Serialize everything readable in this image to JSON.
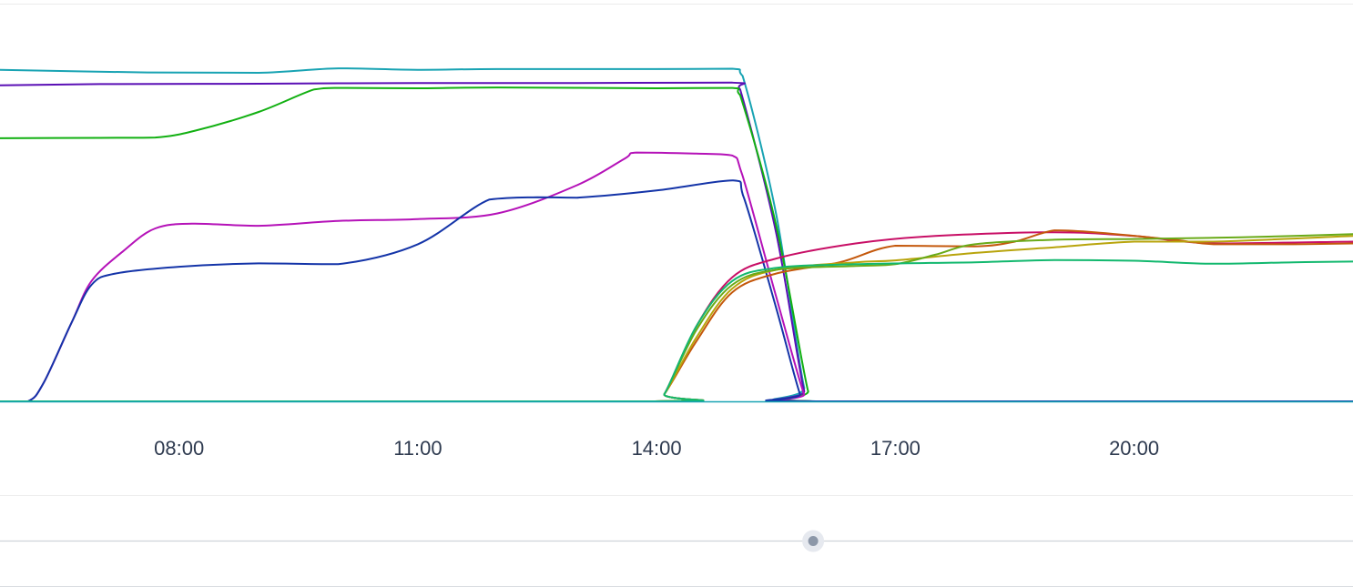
{
  "chart_data": {
    "type": "line",
    "title": "",
    "xlabel": "",
    "ylabel": "",
    "x_ticks": [
      "08:00",
      "11:00",
      "14:00",
      "17:00",
      "20:00"
    ],
    "x_range_hours": [
      5.75,
      22.75
    ],
    "y_range": [
      0,
      1
    ],
    "grid": false,
    "legend": "none",
    "series": [
      {
        "color": "#18a3b3",
        "points": [
          [
            5.75,
            0.882
          ],
          [
            7.6,
            0.875
          ],
          [
            9.0,
            0.874
          ],
          [
            10.0,
            0.886
          ],
          [
            11.0,
            0.882
          ],
          [
            12.0,
            0.884
          ],
          [
            14.0,
            0.884
          ],
          [
            14.95,
            0.885
          ],
          [
            15.08,
            0.866
          ],
          [
            15.5,
            0.5
          ],
          [
            15.85,
            0.04
          ],
          [
            16.0,
            0.0
          ],
          [
            22.75,
            0.0
          ]
        ]
      },
      {
        "color": "#5a0fb5",
        "points": [
          [
            5.75,
            0.841
          ],
          [
            7.0,
            0.844
          ],
          [
            9.0,
            0.845
          ],
          [
            11.0,
            0.847
          ],
          [
            13.0,
            0.847
          ],
          [
            14.95,
            0.848
          ],
          [
            15.05,
            0.83
          ],
          [
            15.5,
            0.45
          ],
          [
            15.85,
            0.03
          ],
          [
            15.98,
            0.0
          ],
          [
            22.75,
            0.0
          ]
        ]
      },
      {
        "color": "#12b012",
        "points": [
          [
            5.75,
            0.7
          ],
          [
            7.0,
            0.701
          ],
          [
            7.7,
            0.702
          ],
          [
            8.2,
            0.72
          ],
          [
            9.0,
            0.77
          ],
          [
            9.7,
            0.83
          ],
          [
            10.0,
            0.834
          ],
          [
            11.0,
            0.833
          ],
          [
            12.0,
            0.835
          ],
          [
            14.0,
            0.833
          ],
          [
            14.95,
            0.834
          ],
          [
            15.05,
            0.815
          ],
          [
            15.5,
            0.47
          ],
          [
            15.9,
            0.03
          ],
          [
            16.02,
            0.0
          ],
          [
            22.75,
            0.0
          ]
        ]
      },
      {
        "color": "#b512b8",
        "points": [
          [
            5.75,
            0.0
          ],
          [
            6.1,
            0.0
          ],
          [
            6.3,
            0.05
          ],
          [
            6.65,
            0.21
          ],
          [
            6.9,
            0.32
          ],
          [
            7.3,
            0.4
          ],
          [
            7.7,
            0.46
          ],
          [
            8.2,
            0.473
          ],
          [
            9.0,
            0.467
          ],
          [
            10.0,
            0.48
          ],
          [
            11.0,
            0.485
          ],
          [
            12.0,
            0.5
          ],
          [
            13.0,
            0.575
          ],
          [
            13.6,
            0.646
          ],
          [
            13.75,
            0.662
          ],
          [
            14.5,
            0.659
          ],
          [
            14.95,
            0.654
          ],
          [
            15.08,
            0.6
          ],
          [
            15.5,
            0.28
          ],
          [
            15.85,
            0.02
          ],
          [
            15.95,
            0.0
          ],
          [
            22.75,
            0.0
          ]
        ]
      },
      {
        "color": "#1434a8",
        "points": [
          [
            5.75,
            0.0
          ],
          [
            6.1,
            0.0
          ],
          [
            6.3,
            0.05
          ],
          [
            6.65,
            0.21
          ],
          [
            6.9,
            0.31
          ],
          [
            7.2,
            0.34
          ],
          [
            8.0,
            0.358
          ],
          [
            9.0,
            0.367
          ],
          [
            10.0,
            0.365
          ],
          [
            11.0,
            0.418
          ],
          [
            11.9,
            0.537
          ],
          [
            12.5,
            0.543
          ],
          [
            13.0,
            0.542
          ],
          [
            14.0,
            0.561
          ],
          [
            14.95,
            0.588
          ],
          [
            15.1,
            0.54
          ],
          [
            15.5,
            0.25
          ],
          [
            15.8,
            0.02
          ],
          [
            15.9,
            0.0
          ],
          [
            22.75,
            0.0
          ]
        ]
      },
      {
        "color": "#c80f66",
        "points": [
          [
            5.75,
            0.0
          ],
          [
            13.95,
            0.0
          ],
          [
            14.1,
            0.02
          ],
          [
            14.5,
            0.2
          ],
          [
            14.95,
            0.33
          ],
          [
            15.5,
            0.38
          ],
          [
            16.5,
            0.42
          ],
          [
            17.5,
            0.44
          ],
          [
            19.0,
            0.45
          ],
          [
            20.0,
            0.44
          ],
          [
            21.0,
            0.42
          ],
          [
            22.75,
            0.425
          ]
        ]
      },
      {
        "color": "#c4580c",
        "points": [
          [
            5.75,
            0.0
          ],
          [
            13.95,
            0.0
          ],
          [
            14.1,
            0.02
          ],
          [
            14.5,
            0.16
          ],
          [
            14.95,
            0.29
          ],
          [
            15.5,
            0.34
          ],
          [
            16.3,
            0.37
          ],
          [
            17.0,
            0.414
          ],
          [
            18.0,
            0.412
          ],
          [
            18.5,
            0.425
          ],
          [
            19.0,
            0.455
          ],
          [
            19.5,
            0.45
          ],
          [
            20.5,
            0.43
          ],
          [
            21.0,
            0.418
          ],
          [
            22.0,
            0.418
          ],
          [
            22.75,
            0.42
          ]
        ]
      },
      {
        "color": "#b8a40c",
        "points": [
          [
            5.75,
            0.0
          ],
          [
            13.95,
            0.0
          ],
          [
            14.1,
            0.02
          ],
          [
            14.5,
            0.17
          ],
          [
            14.95,
            0.3
          ],
          [
            15.5,
            0.35
          ],
          [
            16.5,
            0.37
          ],
          [
            17.0,
            0.375
          ],
          [
            18.0,
            0.395
          ],
          [
            19.0,
            0.41
          ],
          [
            20.0,
            0.425
          ],
          [
            21.0,
            0.425
          ],
          [
            22.75,
            0.44
          ]
        ]
      },
      {
        "color": "#69aa18",
        "points": [
          [
            5.75,
            0.0
          ],
          [
            13.95,
            0.0
          ],
          [
            14.1,
            0.02
          ],
          [
            14.5,
            0.19
          ],
          [
            14.95,
            0.31
          ],
          [
            15.5,
            0.35
          ],
          [
            16.5,
            0.36
          ],
          [
            17.0,
            0.365
          ],
          [
            17.5,
            0.39
          ],
          [
            18.0,
            0.418
          ],
          [
            19.0,
            0.43
          ],
          [
            20.0,
            0.432
          ],
          [
            21.0,
            0.435
          ],
          [
            22.0,
            0.44
          ],
          [
            22.75,
            0.445
          ]
        ]
      },
      {
        "color": "#12b86e",
        "points": [
          [
            5.75,
            0.0
          ],
          [
            13.95,
            0.0
          ],
          [
            14.1,
            0.02
          ],
          [
            14.5,
            0.2
          ],
          [
            14.95,
            0.32
          ],
          [
            15.5,
            0.355
          ],
          [
            16.5,
            0.365
          ],
          [
            18.0,
            0.37
          ],
          [
            19.0,
            0.376
          ],
          [
            20.0,
            0.374
          ],
          [
            21.0,
            0.366
          ],
          [
            22.0,
            0.37
          ],
          [
            22.75,
            0.372
          ]
        ]
      }
    ]
  },
  "range_slider": {
    "handle_position": 0.601
  }
}
